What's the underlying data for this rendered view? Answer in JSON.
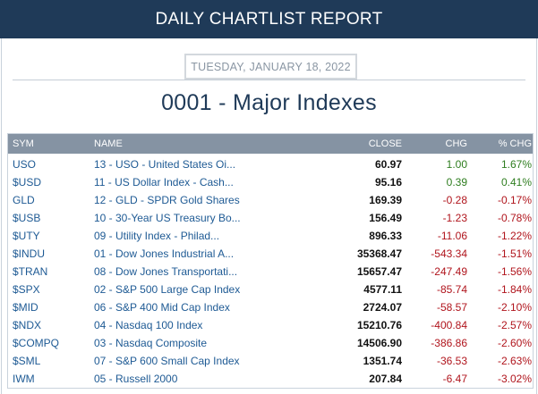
{
  "header": {
    "title": "DAILY CHARTLIST REPORT"
  },
  "report": {
    "date": "TUESDAY, JANUARY 18, 2022",
    "title": "0001 - Major Indexes"
  },
  "table": {
    "columns": {
      "sym": "SYM",
      "name": "NAME",
      "close": "CLOSE",
      "chg": "CHG",
      "pct": "% CHG"
    },
    "rows": [
      {
        "sym": "USO",
        "name": "13 - USO - United States Oi...",
        "close": "60.97",
        "chg": "1.00",
        "pct": "1.67%",
        "dir": "pos"
      },
      {
        "sym": "$USD",
        "name": "11 - US Dollar Index - Cash...",
        "close": "95.16",
        "chg": "0.39",
        "pct": "0.41%",
        "dir": "pos"
      },
      {
        "sym": "GLD",
        "name": "12 - GLD - SPDR Gold Shares",
        "close": "169.39",
        "chg": "-0.28",
        "pct": "-0.17%",
        "dir": "neg"
      },
      {
        "sym": "$USB",
        "name": "10 - 30-Year US Treasury Bo...",
        "close": "156.49",
        "chg": "-1.23",
        "pct": "-0.78%",
        "dir": "neg"
      },
      {
        "sym": "$UTY",
        "name": "09 - Utility Index - Philad...",
        "close": "896.33",
        "chg": "-11.06",
        "pct": "-1.22%",
        "dir": "neg"
      },
      {
        "sym": "$INDU",
        "name": "01 - Dow Jones Industrial A...",
        "close": "35368.47",
        "chg": "-543.34",
        "pct": "-1.51%",
        "dir": "neg"
      },
      {
        "sym": "$TRAN",
        "name": "08 - Dow Jones Transportati...",
        "close": "15657.47",
        "chg": "-247.49",
        "pct": "-1.56%",
        "dir": "neg"
      },
      {
        "sym": "$SPX",
        "name": "02 - S&P 500 Large Cap Index",
        "close": "4577.11",
        "chg": "-85.74",
        "pct": "-1.84%",
        "dir": "neg"
      },
      {
        "sym": "$MID",
        "name": "06 - S&P 400 Mid Cap Index",
        "close": "2724.07",
        "chg": "-58.57",
        "pct": "-2.10%",
        "dir": "neg"
      },
      {
        "sym": "$NDX",
        "name": "04 - Nasdaq 100 Index",
        "close": "15210.76",
        "chg": "-400.84",
        "pct": "-2.57%",
        "dir": "neg"
      },
      {
        "sym": "$COMPQ",
        "name": "03 - Nasdaq Composite",
        "close": "14506.90",
        "chg": "-386.86",
        "pct": "-2.60%",
        "dir": "neg"
      },
      {
        "sym": "$SML",
        "name": "07 - S&P 600 Small Cap Index",
        "close": "1351.74",
        "chg": "-36.53",
        "pct": "-2.63%",
        "dir": "neg"
      },
      {
        "sym": "IWM",
        "name": "05 - Russell 2000",
        "close": "207.84",
        "chg": "-6.47",
        "pct": "-3.02%",
        "dir": "neg"
      }
    ]
  }
}
